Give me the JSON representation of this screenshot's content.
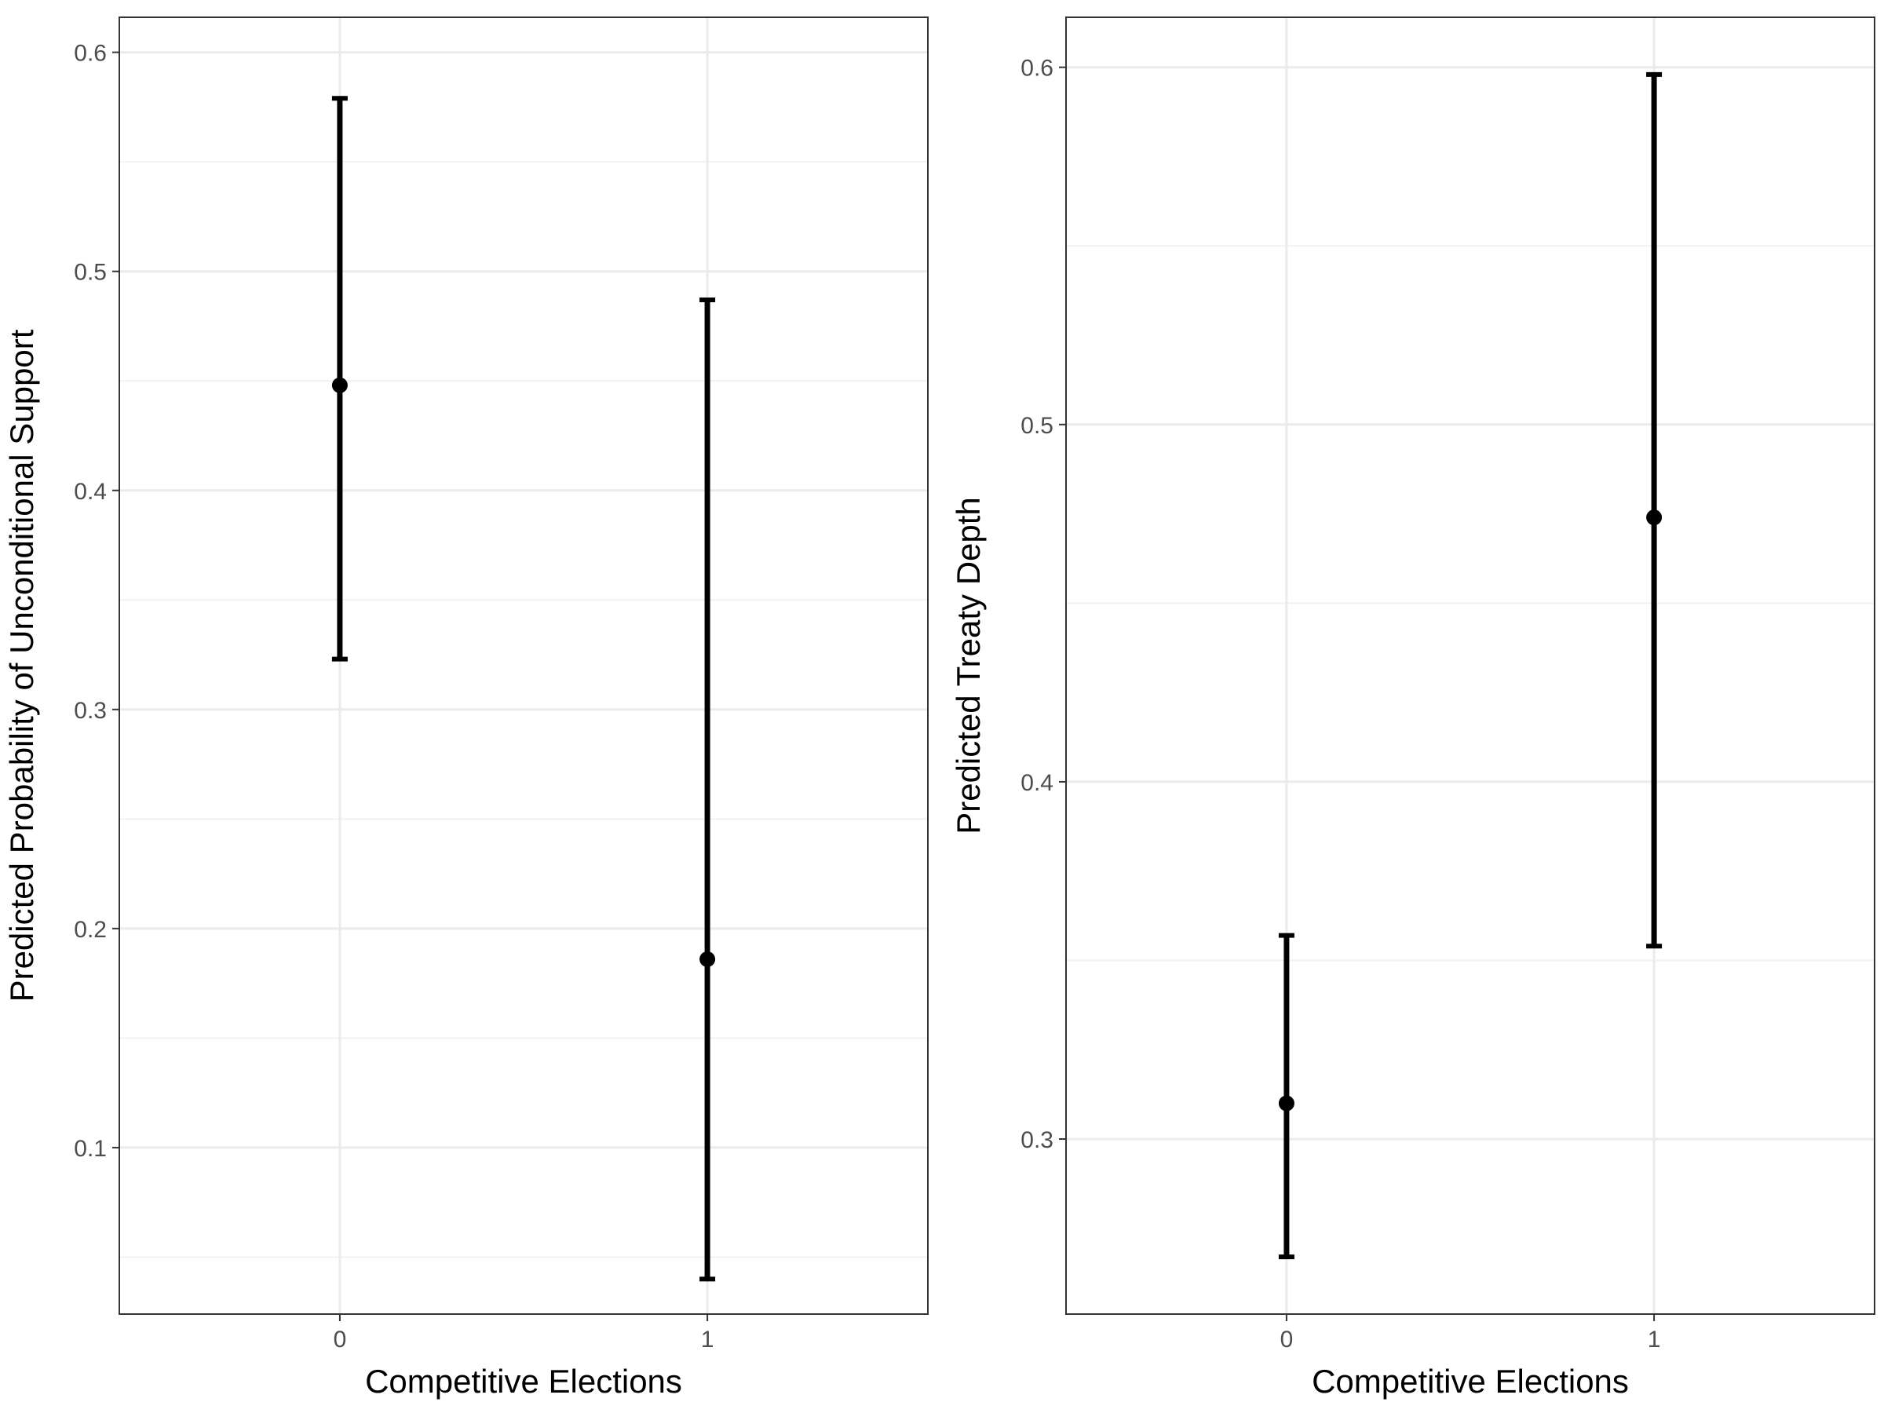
{
  "chart_data": [
    {
      "type": "scatter",
      "subtype": "point-with-errorbars",
      "xlabel": "Competitive Elections",
      "ylabel": "Predicted Probability of Unconditional Support",
      "categories": [
        "0",
        "1"
      ],
      "values": [
        0.448,
        0.186
      ],
      "lower": [
        0.323,
        0.04
      ],
      "upper": [
        0.579,
        0.487
      ],
      "ylim": [
        0.024,
        0.616
      ],
      "yticks": [
        0.1,
        0.2,
        0.3,
        0.4,
        0.5,
        0.6
      ],
      "ytick_labels": [
        "0.1",
        "0.2",
        "0.3",
        "0.4",
        "0.5",
        "0.6"
      ],
      "grid": true,
      "color": "#000000"
    },
    {
      "type": "scatter",
      "subtype": "point-with-errorbars",
      "xlabel": "Competitive Elections",
      "ylabel": "Predicted Treaty Depth",
      "categories": [
        "0",
        "1"
      ],
      "values": [
        0.31,
        0.474
      ],
      "lower": [
        0.267,
        0.354
      ],
      "upper": [
        0.357,
        0.598
      ],
      "ylim": [
        0.251,
        0.614
      ],
      "yticks": [
        0.3,
        0.4,
        0.5,
        0.6
      ],
      "ytick_labels": [
        "0.3",
        "0.4",
        "0.5",
        "0.6"
      ],
      "grid": true,
      "color": "#000000"
    }
  ]
}
